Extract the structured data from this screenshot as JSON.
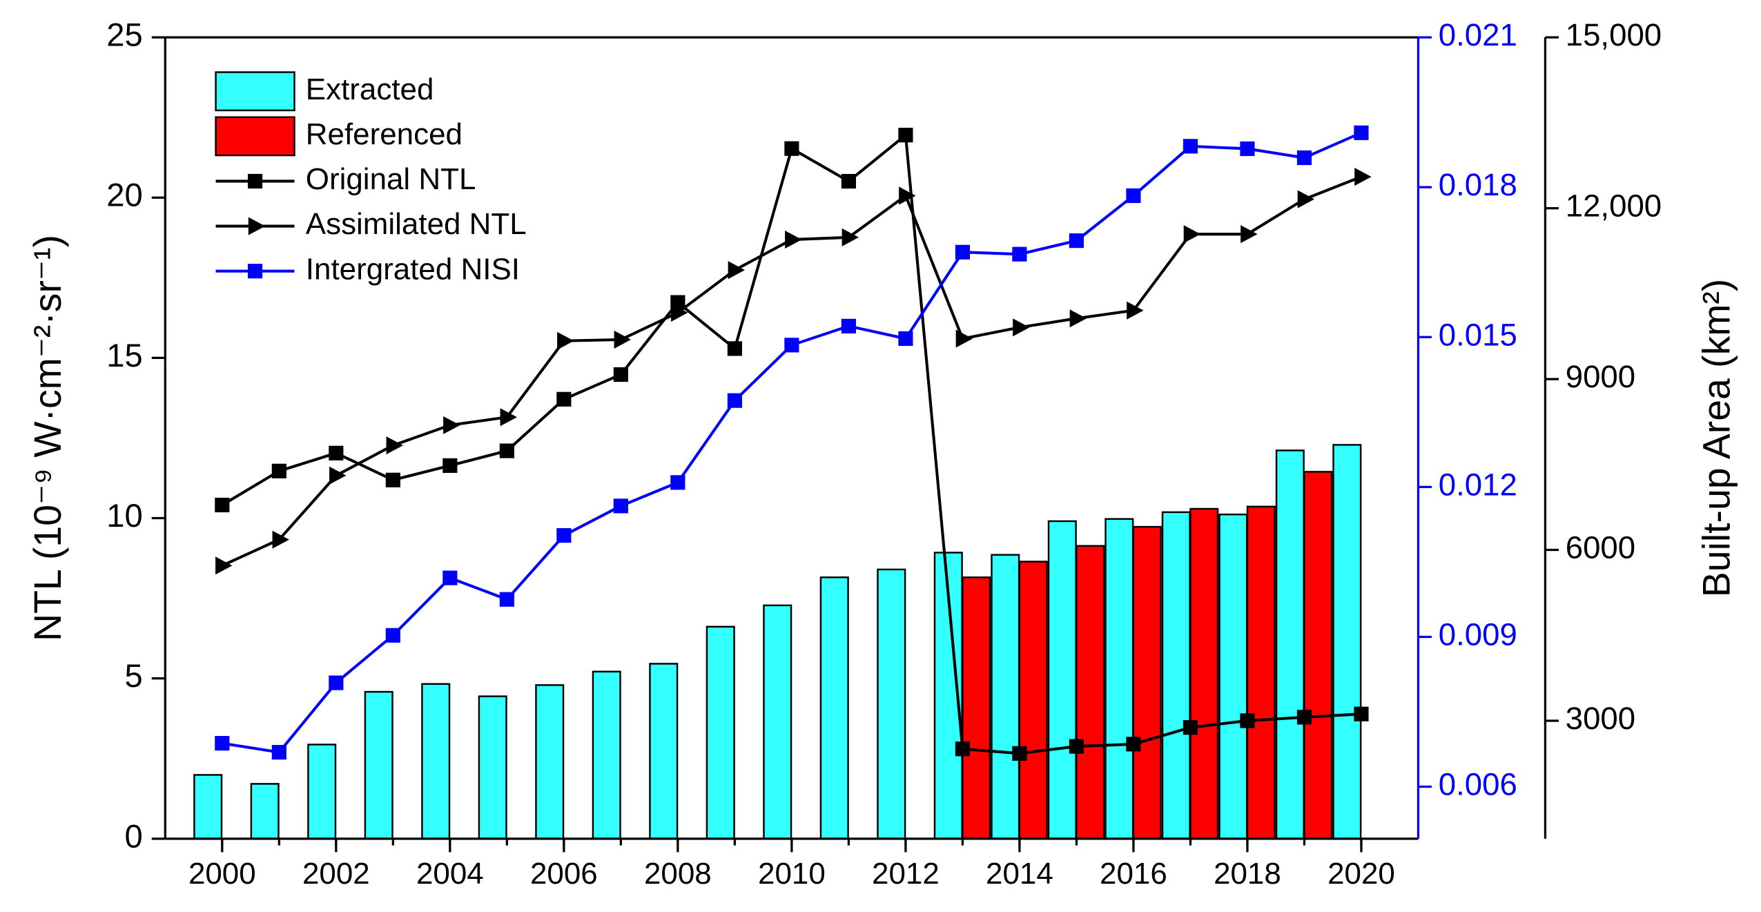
{
  "chart_data": {
    "type": "bar",
    "x": [
      2000,
      2001,
      2002,
      2003,
      2004,
      2005,
      2006,
      2007,
      2008,
      2009,
      2010,
      2011,
      2012,
      2013,
      2014,
      2015,
      2016,
      2017,
      2018,
      2019,
      2020
    ],
    "xlim": [
      1999,
      2021
    ],
    "xticks": [
      2000,
      2002,
      2004,
      2006,
      2008,
      2010,
      2012,
      2014,
      2016,
      2018,
      2020
    ],
    "ylabel": "NTL (10⁻⁹ W·cm⁻²·sr⁻¹)",
    "ylim": [
      0,
      25
    ],
    "yticks": [
      0,
      5,
      10,
      15,
      20,
      25
    ],
    "y2lim": [
      0.00496,
      0.021
    ],
    "y2ticks": [
      0.006,
      0.009,
      0.012,
      0.015,
      0.018,
      0.021
    ],
    "y2color": "#0000ff",
    "y3label": "Built-up Area (km²)",
    "y3lim": [
      930,
      15000
    ],
    "y3ticks": [
      3000,
      6000,
      9000,
      {
        "value": 12000,
        "label": "12,000"
      },
      {
        "value": 15000,
        "label": "15,000"
      }
    ],
    "series": [
      {
        "name": "Extracted",
        "type": "bar",
        "axis": "y3",
        "color": "#33ffff",
        "values": [
          2050,
          1893,
          2583,
          3509,
          3647,
          3430,
          3627,
          3864,
          4002,
          4652,
          5027,
          5519,
          5657,
          5953,
          5914,
          6505,
          6544,
          6663,
          6623,
          7747,
          7845
        ]
      },
      {
        "name": "Referenced",
        "type": "bar",
        "axis": "y3",
        "color": "#ff0000",
        "values": [
          null,
          null,
          null,
          null,
          null,
          null,
          null,
          null,
          null,
          null,
          null,
          null,
          null,
          5519,
          5795,
          6071,
          6406,
          6722,
          6761,
          7372,
          null
        ]
      },
      {
        "name": "Original NTL",
        "type": "line",
        "marker": "square",
        "color": "#000000",
        "values": [
          10.41,
          11.47,
          12.03,
          11.19,
          11.64,
          12.1,
          13.71,
          14.48,
          16.73,
          15.29,
          21.53,
          20.51,
          21.95,
          2.8,
          2.66,
          2.88,
          2.95,
          3.47,
          3.68,
          3.79,
          3.89
        ]
      },
      {
        "name": "Assimilated NTL",
        "type": "line",
        "marker": "triangle",
        "color": "#000000",
        "values": [
          8.52,
          9.33,
          11.33,
          12.27,
          12.9,
          13.15,
          15.53,
          15.57,
          16.41,
          17.74,
          18.69,
          18.76,
          20.06,
          15.6,
          15.95,
          16.23,
          16.48,
          18.86,
          18.86,
          19.95,
          20.65
        ]
      },
      {
        "name": "Intergrated NISI",
        "type": "line",
        "marker": "square",
        "axis": "y2",
        "color": "#0000ff",
        "values": [
          0.00687,
          0.00669,
          0.00808,
          0.00903,
          0.01018,
          0.00975,
          0.01103,
          0.01162,
          0.01209,
          0.01373,
          0.01484,
          0.01522,
          0.01497,
          0.0167,
          0.01666,
          0.01693,
          0.01783,
          0.01882,
          0.01877,
          0.01859,
          0.01909
        ]
      }
    ]
  }
}
